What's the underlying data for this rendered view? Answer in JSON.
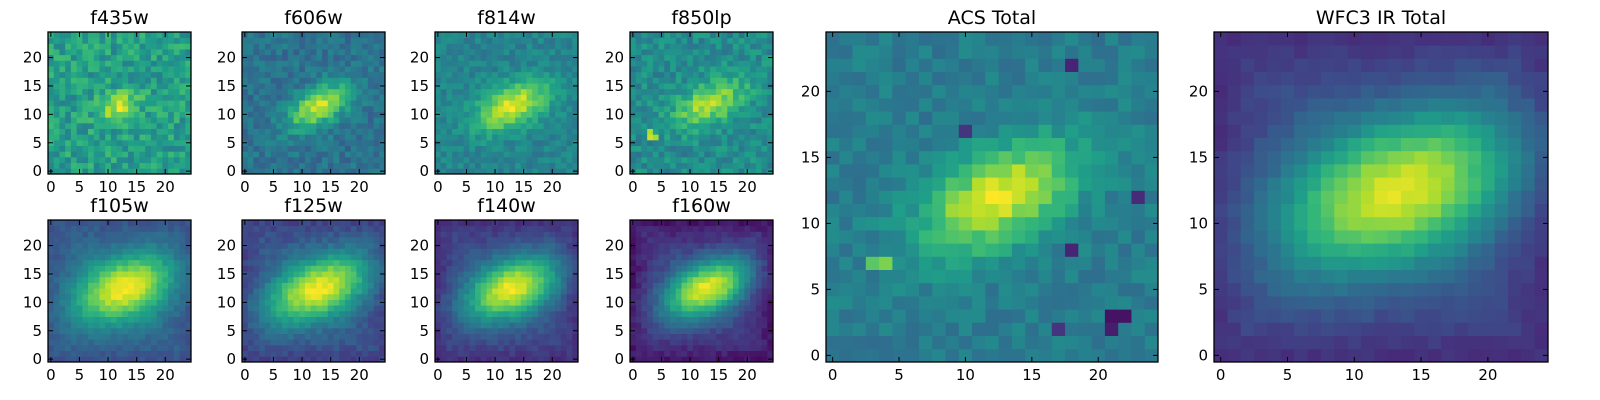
{
  "chart_data": [
    {
      "type": "heatmap",
      "title": "f435w",
      "id": "f435w",
      "grid_size": 25,
      "xlim": [
        -0.5,
        24.5
      ],
      "ylim": [
        -0.5,
        24.5
      ],
      "xticks": [
        0,
        5,
        10,
        15,
        20
      ],
      "yticks": [
        0,
        5,
        10,
        15,
        20
      ],
      "source": {
        "center_x": 12,
        "center_y": 11.5,
        "sigma_major": 2.5,
        "sigma_minor": 1.6,
        "angle_deg": 25,
        "amplitude": 0.35
      },
      "background": 0.56,
      "noise": 0.26,
      "vignette": 0,
      "hot_pixels": [],
      "seed": 11
    },
    {
      "type": "heatmap",
      "title": "f606w",
      "id": "f606w",
      "grid_size": 25,
      "xlim": [
        -0.5,
        24.5
      ],
      "ylim": [
        -0.5,
        24.5
      ],
      "xticks": [
        0,
        5,
        10,
        15,
        20
      ],
      "yticks": [
        0,
        5,
        10,
        15,
        20
      ],
      "source": {
        "center_x": 13,
        "center_y": 11.5,
        "sigma_major": 4.2,
        "sigma_minor": 2.1,
        "angle_deg": 30,
        "amplitude": 0.55
      },
      "background": 0.38,
      "noise": 0.17,
      "vignette": 0,
      "hot_pixels": [],
      "seed": 23
    },
    {
      "type": "heatmap",
      "title": "f814w",
      "id": "f814w",
      "grid_size": 25,
      "xlim": [
        -0.5,
        24.5
      ],
      "ylim": [
        -0.5,
        24.5
      ],
      "xticks": [
        0,
        5,
        10,
        15,
        20
      ],
      "yticks": [
        0,
        5,
        10,
        15,
        20
      ],
      "source": {
        "center_x": 13,
        "center_y": 11.5,
        "sigma_major": 4.8,
        "sigma_minor": 2.5,
        "angle_deg": 25,
        "amplitude": 0.5
      },
      "background": 0.45,
      "noise": 0.15,
      "vignette": 0,
      "hot_pixels": [],
      "seed": 37
    },
    {
      "type": "heatmap",
      "title": "f850lp",
      "id": "f850lp",
      "grid_size": 25,
      "xlim": [
        -0.5,
        24.5
      ],
      "ylim": [
        -0.5,
        24.5
      ],
      "xticks": [
        0,
        5,
        10,
        15,
        20
      ],
      "yticks": [
        0,
        5,
        10,
        15,
        20
      ],
      "source": {
        "center_x": 13.5,
        "center_y": 12,
        "sigma_major": 4.6,
        "sigma_minor": 2.4,
        "angle_deg": 25,
        "amplitude": 0.4
      },
      "background": 0.48,
      "noise": 0.2,
      "vignette": 0,
      "hot_pixels": [
        [
          3,
          6,
          0.92
        ],
        [
          4,
          6,
          0.86
        ],
        [
          3,
          7,
          0.88
        ]
      ],
      "seed": 41
    },
    {
      "type": "heatmap",
      "title": "f105w",
      "id": "f105w",
      "grid_size": 25,
      "xlim": [
        -0.5,
        24.5
      ],
      "ylim": [
        -0.5,
        24.5
      ],
      "xticks": [
        0,
        5,
        10,
        15,
        20
      ],
      "yticks": [
        0,
        5,
        10,
        15,
        20
      ],
      "source": {
        "center_x": 13,
        "center_y": 12.5,
        "sigma_major": 6.2,
        "sigma_minor": 3.6,
        "angle_deg": 20,
        "amplitude": 0.62
      },
      "background": 0.38,
      "noise": 0.08,
      "vignette": 0.12,
      "hot_pixels": [],
      "seed": 53
    },
    {
      "type": "heatmap",
      "title": "f125w",
      "id": "f125w",
      "grid_size": 25,
      "xlim": [
        -0.5,
        24.5
      ],
      "ylim": [
        -0.5,
        24.5
      ],
      "xticks": [
        0,
        5,
        10,
        15,
        20
      ],
      "yticks": [
        0,
        5,
        10,
        15,
        20
      ],
      "source": {
        "center_x": 13,
        "center_y": 12.5,
        "sigma_major": 6.6,
        "sigma_minor": 3.4,
        "angle_deg": 22,
        "amplitude": 0.65
      },
      "background": 0.34,
      "noise": 0.09,
      "vignette": 0.14,
      "hot_pixels": [],
      "seed": 67
    },
    {
      "type": "heatmap",
      "title": "f140w",
      "id": "f140w",
      "grid_size": 25,
      "xlim": [
        -0.5,
        24.5
      ],
      "ylim": [
        -0.5,
        24.5
      ],
      "xticks": [
        0,
        5,
        10,
        15,
        20
      ],
      "yticks": [
        0,
        5,
        10,
        15,
        20
      ],
      "source": {
        "center_x": 13,
        "center_y": 12.5,
        "sigma_major": 6,
        "sigma_minor": 3.3,
        "angle_deg": 22,
        "amplitude": 0.68
      },
      "background": 0.3,
      "noise": 0.08,
      "vignette": 0.16,
      "hot_pixels": [],
      "seed": 79
    },
    {
      "type": "heatmap",
      "title": "f160w",
      "id": "f160w",
      "grid_size": 25,
      "xlim": [
        -0.5,
        24.5
      ],
      "ylim": [
        -0.5,
        24.5
      ],
      "xticks": [
        0,
        5,
        10,
        15,
        20
      ],
      "yticks": [
        0,
        5,
        10,
        15,
        20
      ],
      "source": {
        "center_x": 13,
        "center_y": 12.5,
        "sigma_major": 5.6,
        "sigma_minor": 3,
        "angle_deg": 24,
        "amplitude": 0.72
      },
      "background": 0.26,
      "noise": 0.08,
      "vignette": 0.2,
      "hot_pixels": [],
      "seed": 83
    },
    {
      "type": "heatmap",
      "title": "ACS Total",
      "id": "acs-total",
      "grid_size": 25,
      "xlim": [
        -0.5,
        24.5
      ],
      "ylim": [
        -0.5,
        24.5
      ],
      "xticks": [
        0,
        5,
        10,
        15,
        20
      ],
      "yticks": [
        0,
        5,
        10,
        15,
        20
      ],
      "source": {
        "center_x": 12.5,
        "center_y": 12,
        "sigma_major": 4.4,
        "sigma_minor": 2.3,
        "angle_deg": 28,
        "amplitude": 0.55
      },
      "background": 0.42,
      "noise": 0.13,
      "vignette": 0,
      "hot_pixels": [
        [
          4,
          7,
          0.8
        ],
        [
          3,
          7,
          0.74
        ],
        [
          21,
          3,
          0.05
        ],
        [
          22,
          3,
          0.05
        ],
        [
          21,
          2,
          0.08
        ],
        [
          18,
          8,
          0.1
        ],
        [
          23,
          12,
          0.12
        ],
        [
          17,
          2,
          0.15
        ],
        [
          18,
          22,
          0.1
        ],
        [
          10,
          17,
          0.15
        ]
      ],
      "seed": 97
    },
    {
      "type": "heatmap",
      "title": "WFC3 IR Total",
      "id": "wfc3-ir-total",
      "grid_size": 25,
      "xlim": [
        -0.5,
        24.5
      ],
      "ylim": [
        -0.5,
        24.5
      ],
      "xticks": [
        0,
        5,
        10,
        15,
        20
      ],
      "yticks": [
        0,
        5,
        10,
        15,
        20
      ],
      "source": {
        "center_x": 13.5,
        "center_y": 12.5,
        "sigma_major": 6.6,
        "sigma_minor": 3.6,
        "angle_deg": 20,
        "amplitude": 0.66
      },
      "background": 0.3,
      "noise": 0.05,
      "vignette": 0.16,
      "hot_pixels": [],
      "seed": 101
    }
  ],
  "colormap": [
    "#440154",
    "#482878",
    "#3e4989",
    "#31688e",
    "#26828e",
    "#1f9e89",
    "#35b779",
    "#6ece58",
    "#b5de2b",
    "#fde725"
  ]
}
